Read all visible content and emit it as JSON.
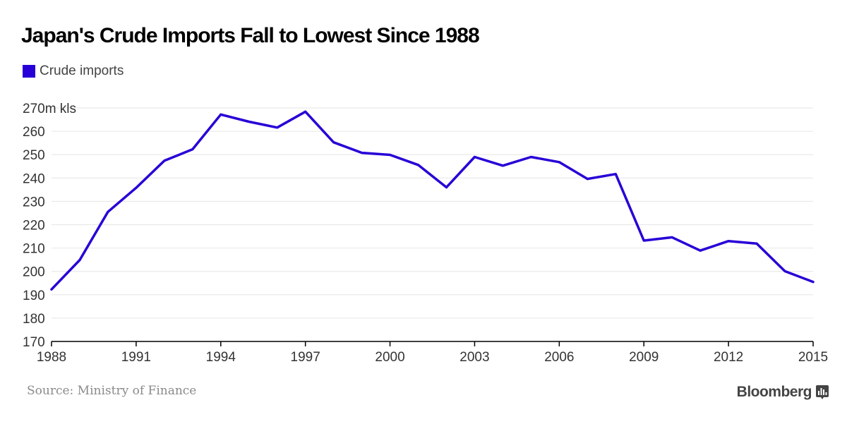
{
  "colors": {
    "series": "#2800d7",
    "grid": "#e6e6e6",
    "axis": "#000000",
    "tick_text": "#333333"
  },
  "brand": {
    "name": "Bloomberg",
    "icon": "bar-chart-icon"
  },
  "source": "Source: Ministry of Finance",
  "chart_data": {
    "type": "line",
    "title": "Japan's Crude Imports Fall to Lowest Since 1988",
    "legend": "top-left",
    "grid": true,
    "xlim": [
      1988,
      2015
    ],
    "ylim": [
      170,
      270
    ],
    "x_ticks": [
      1988,
      1991,
      1994,
      1997,
      2000,
      2003,
      2006,
      2009,
      2012,
      2015
    ],
    "y_ticks": [
      170,
      180,
      190,
      200,
      210,
      220,
      230,
      240,
      250,
      260,
      270
    ],
    "y_tick_labels": [
      "170",
      "180",
      "190",
      "200",
      "210",
      "220",
      "230",
      "240",
      "250",
      "260",
      "270m kls"
    ],
    "x": [
      1988,
      1989,
      1990,
      1991,
      1992,
      1993,
      1994,
      1995,
      1996,
      1997,
      1998,
      1999,
      2000,
      2001,
      2002,
      2003,
      2004,
      2005,
      2006,
      2007,
      2008,
      2009,
      2010,
      2011,
      2012,
      2013,
      2014,
      2015
    ],
    "series": [
      {
        "name": "Crude imports",
        "values": [
          192.3,
          204.9,
          225.5,
          235.8,
          247.4,
          252.3,
          267.2,
          264.1,
          261.6,
          268.4,
          255.3,
          250.8,
          249.9,
          245.6,
          236.0,
          249.0,
          245.3,
          249.0,
          246.8,
          239.6,
          241.7,
          213.2,
          214.6,
          208.9,
          213.0,
          211.9,
          200.1,
          195.5
        ]
      }
    ]
  }
}
